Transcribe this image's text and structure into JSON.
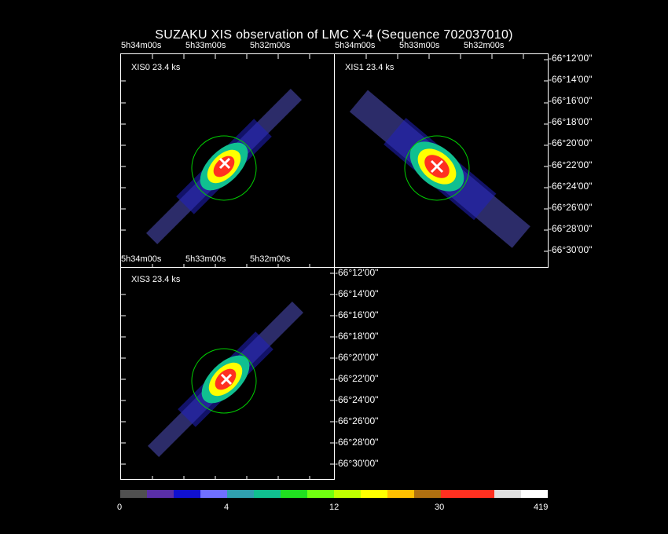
{
  "title": "SUZAKU XIS observation of LMC X-4  (Sequence 702037010)",
  "panels": [
    {
      "label": "XIS0 23.4 ks"
    },
    {
      "label": "XIS1 23.4 ks"
    },
    {
      "label": "XIS3 23.4 ks"
    }
  ],
  "ra_ticks": [
    "5h34m00s",
    "5h33m00s",
    "5h32m00s"
  ],
  "ra_ticks_xis1": [
    "5h34m00s",
    "5h33m00s",
    "5h32m00s"
  ],
  "ra_ticks_xis3": [
    "5h34m00s",
    "5h33m00s",
    "5h32m00s"
  ],
  "dec_ticks": [
    "-66°12'00\"",
    "-66°14'00\"",
    "-66°16'00\"",
    "-66°18'00\"",
    "-66°20'00\"",
    "-66°22'00\"",
    "-66°24'00\"",
    "-66°26'00\"",
    "-66°28'00\"",
    "-66°30'00\""
  ],
  "colorbar": {
    "labels": [
      "0",
      "4",
      "12",
      "30",
      "419"
    ],
    "colors": [
      "#505050",
      "#5a2fa8",
      "#1010d0",
      "#7070ff",
      "#30a0b0",
      "#10c090",
      "#20e020",
      "#70ff10",
      "#c0ff00",
      "#ffff00",
      "#ffc000",
      "#b07010",
      "#ff3020",
      "#ff3020",
      "#e0e0e0",
      "#ffffff"
    ]
  },
  "circle_color": "#00d000"
}
